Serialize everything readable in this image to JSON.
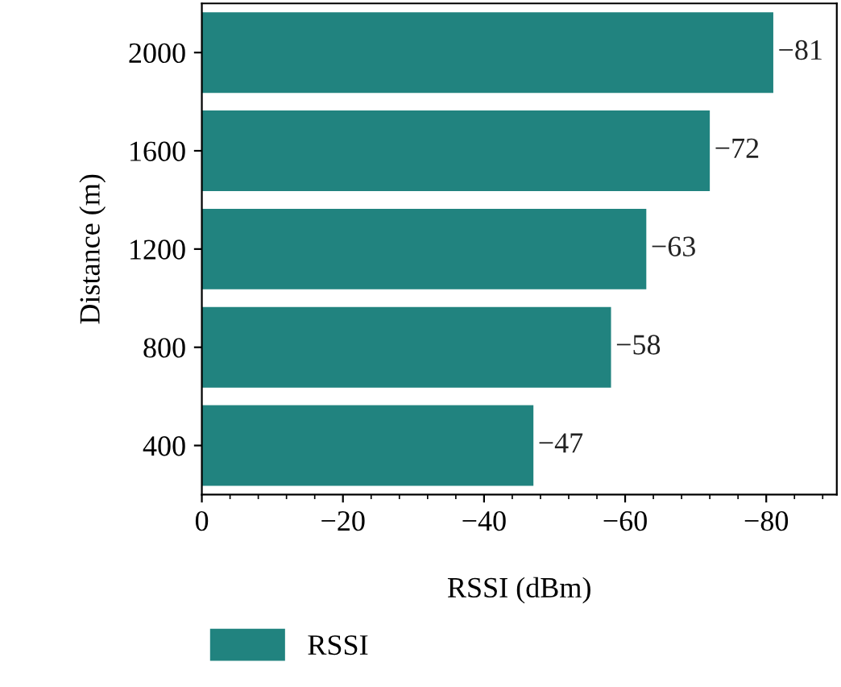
{
  "chart_data": {
    "type": "bar",
    "orientation": "horizontal",
    "xlabel": "RSSI (dBm)",
    "ylabel": "Distance (m)",
    "categories": [
      "2000",
      "1600",
      "1200",
      "800",
      "400"
    ],
    "series": [
      {
        "name": "RSSI",
        "color": "#21837f",
        "values": [
          -81,
          -72,
          -63,
          -58,
          -47
        ]
      }
    ],
    "xlim": [
      0,
      -90
    ],
    "xticks": [
      0,
      {
        "value": -20,
        "label": "−20"
      },
      {
        "value": -40,
        "label": "−40"
      },
      {
        "value": -60,
        "label": "−60"
      },
      {
        "value": -80,
        "label": "−80"
      }
    ],
    "data_labels": true,
    "legend": "bottom"
  }
}
